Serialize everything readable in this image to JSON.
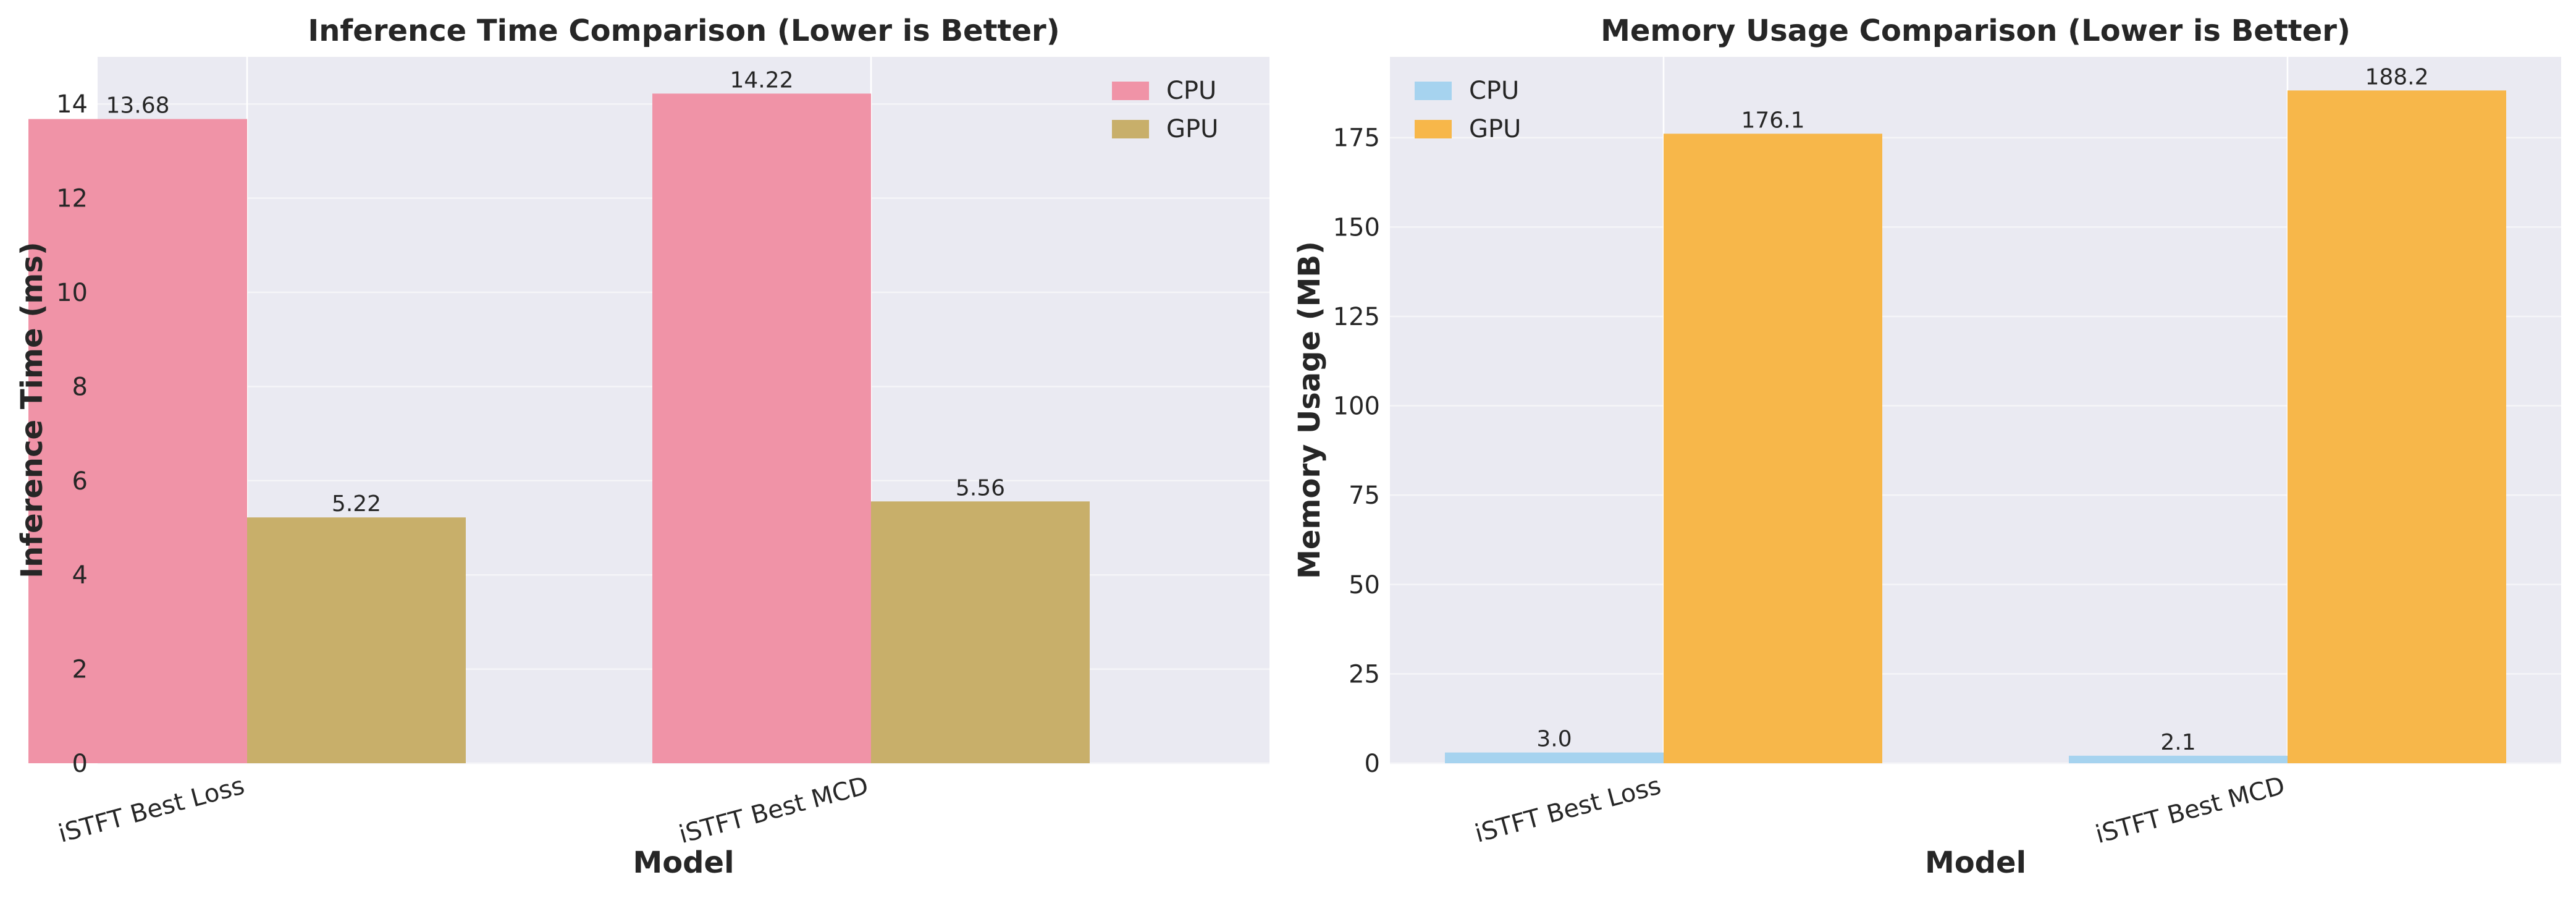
{
  "chart_data": [
    {
      "type": "bar",
      "title": "Inference Time Comparison (Lower is Better)",
      "xlabel": "Model",
      "ylabel": "Inference Time (ms)",
      "categories": [
        "iSTFT Best Loss",
        "iSTFT Best MCD"
      ],
      "series": [
        {
          "name": "CPU",
          "values": [
            13.68,
            14.22
          ],
          "labels": [
            "13.68",
            "14.22"
          ],
          "color": "#f093a7"
        },
        {
          "name": "GPU",
          "values": [
            5.22,
            5.56
          ],
          "labels": [
            "5.22",
            "5.56"
          ],
          "color": "#c8af6a"
        }
      ],
      "ylim": [
        0,
        15
      ],
      "yticks": [
        0,
        2,
        4,
        6,
        8,
        10,
        12,
        14
      ],
      "grid": true,
      "legend": "top-right"
    },
    {
      "type": "bar",
      "title": "Memory Usage Comparison (Lower is Better)",
      "xlabel": "Model",
      "ylabel": "Memory Usage (MB)",
      "categories": [
        "iSTFT Best Loss",
        "iSTFT Best MCD"
      ],
      "series": [
        {
          "name": "CPU",
          "values": [
            3.0,
            2.1
          ],
          "labels": [
            "3.0",
            "2.1"
          ],
          "color": "#a6d3ef"
        },
        {
          "name": "GPU",
          "values": [
            176.1,
            188.2
          ],
          "labels": [
            "176.1",
            "188.2"
          ],
          "color": "#f7b74a"
        }
      ],
      "ylim": [
        0,
        197.6
      ],
      "yticks": [
        0,
        25,
        50,
        75,
        100,
        125,
        150,
        175
      ],
      "grid": true,
      "legend": "top-left"
    }
  ]
}
